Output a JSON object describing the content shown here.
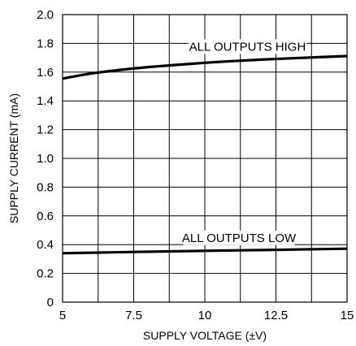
{
  "chart_data": {
    "type": "line",
    "xlabel": "SUPPLY VOLTAGE (±V)",
    "ylabel": "SUPPLY CURRENT (mA)",
    "xlim": [
      5,
      15
    ],
    "ylim": [
      0,
      2.0
    ],
    "x_ticks": [
      5,
      6.25,
      7.5,
      8.75,
      10,
      11.25,
      12.5,
      13.75,
      15
    ],
    "x_tick_labels": [
      "5",
      "7.5",
      "10",
      "12.5",
      "15"
    ],
    "x_tick_label_values": [
      5,
      7.5,
      10,
      12.5,
      15
    ],
    "y_ticks": [
      0,
      0.2,
      0.4,
      0.6,
      0.8,
      1.0,
      1.2,
      1.4,
      1.6,
      1.8,
      2.0
    ],
    "y_tick_labels": [
      "0",
      "0.2",
      "0.4",
      "0.6",
      "0.8",
      "1.0",
      "1.2",
      "1.4",
      "1.6",
      "1.8",
      "2.0"
    ],
    "grid": true,
    "series": [
      {
        "name": "ALL OUTPUTS HIGH",
        "x": [
          5,
          6,
          7,
          8,
          9,
          10,
          11,
          12,
          13,
          14,
          15
        ],
        "y": [
          1.555,
          1.59,
          1.615,
          1.635,
          1.65,
          1.665,
          1.677,
          1.687,
          1.696,
          1.704,
          1.712
        ]
      },
      {
        "name": "ALL OUTPUTS LOW",
        "x": [
          5,
          7.5,
          10,
          12.5,
          15
        ],
        "y": [
          0.34,
          0.349,
          0.357,
          0.364,
          0.372
        ]
      }
    ],
    "annotations": [
      {
        "text": "ALL OUTPUTS HIGH",
        "x": 11.5,
        "y": 1.755
      },
      {
        "text": "ALL OUTPUTS LOW",
        "x": 11.2,
        "y": 0.425
      }
    ]
  }
}
